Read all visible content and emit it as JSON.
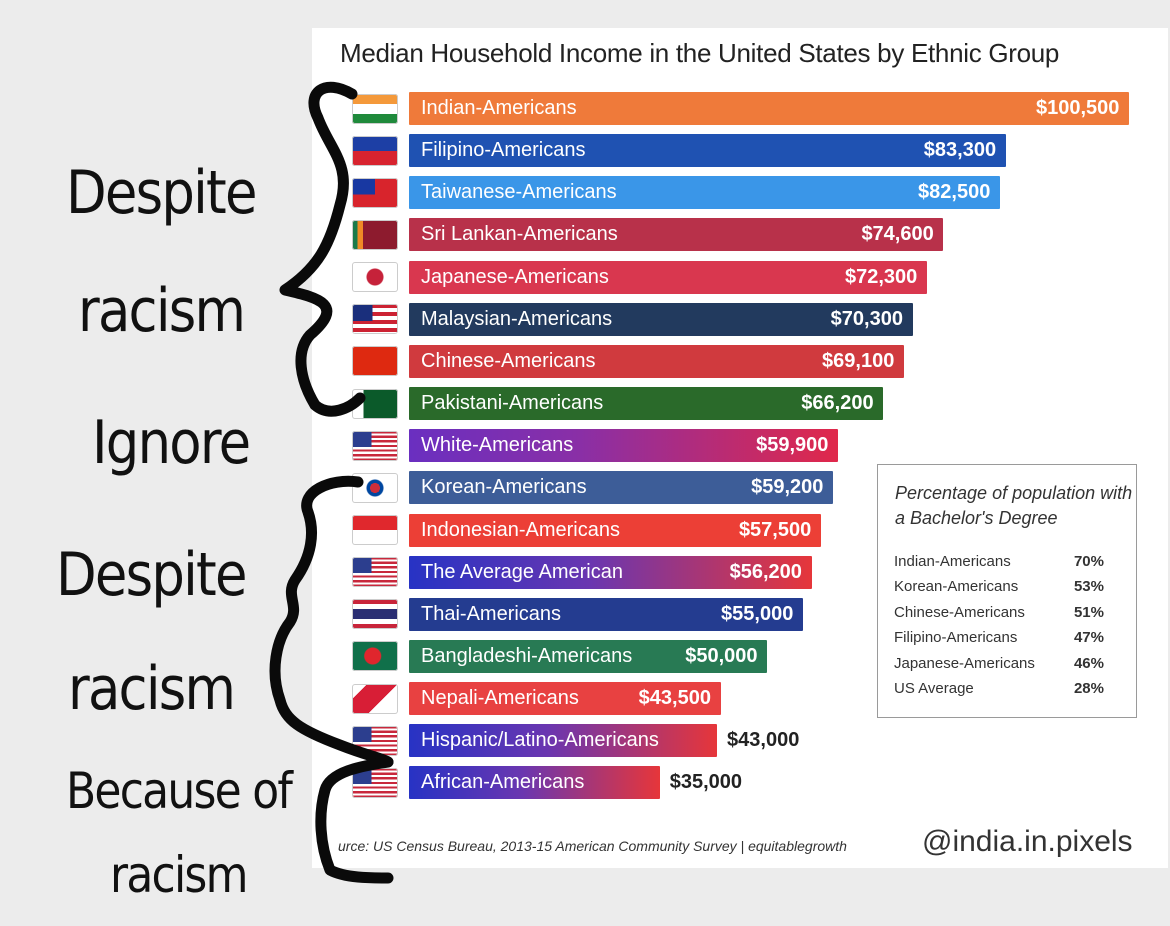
{
  "chart_data": {
    "type": "bar",
    "orientation": "horizontal",
    "title": "Median Household Income in the United States  by Ethnic Group",
    "categories": [
      "Indian-Americans",
      "Filipino-Americans",
      "Taiwanese-Americans",
      "Sri Lankan-Americans",
      "Japanese-Americans",
      "Malaysian-Americans",
      "Chinese-Americans",
      "Pakistani-Americans",
      "White-Americans",
      "Korean-Americans",
      "Indonesian-Americans",
      "The Average American",
      "Thai-Americans",
      "Bangladeshi-Americans",
      "Nepali-Americans",
      "Hispanic/Latino-Americans",
      "African-Americans"
    ],
    "values": [
      100500,
      83300,
      82500,
      74600,
      72300,
      70300,
      69100,
      66200,
      59900,
      59200,
      57500,
      56200,
      55000,
      50000,
      43500,
      43000,
      35000
    ],
    "value_labels": [
      "$100,500",
      "$83,300",
      "$82,500",
      "$74,600",
      "$72,300",
      "$70,300",
      "$69,100",
      "$66,200",
      "$59,900",
      "$59,200",
      "$57,500",
      "$56,200",
      "$55,000",
      "$50,000",
      "$43,500",
      "$43,000",
      "$35,000"
    ],
    "colors": [
      "#ef7a3a",
      "#1f52b2",
      "#3a96e8",
      "#b8314a",
      "#d9374f",
      "#223a5e",
      "#d03a3e",
      "#2a6a2a",
      "gradient-red-purple",
      "#3d5d98",
      "#ec3f36",
      "gradient-blue-red",
      "#243c90",
      "#287a54",
      "#e84141",
      "gradient-blue-red",
      "gradient-blue-red"
    ],
    "flags": [
      "india-flag-icon",
      "philippines-flag-icon",
      "taiwan-flag-icon",
      "sri-lanka-flag-icon",
      "japan-flag-icon",
      "malaysia-flag-icon",
      "china-flag-icon",
      "pakistan-flag-icon",
      "usa-flag-icon",
      "south-korea-flag-icon",
      "indonesia-flag-icon",
      "usa-flag-icon",
      "thailand-flag-icon",
      "bangladesh-flag-icon",
      "nepal-flag-icon",
      "usa-flag-icon",
      "usa-flag-icon"
    ],
    "xlim": [
      0,
      100500
    ],
    "grid": false,
    "legend_position": "right",
    "inset_table": {
      "title": "Percentage of population with a Bachelor's Degree",
      "rows": [
        {
          "label": "Indian-Americans",
          "value": "70%"
        },
        {
          "label": "Korean-Americans",
          "value": "53%"
        },
        {
          "label": "Chinese-Americans",
          "value": "51%"
        },
        {
          "label": "Filipino-Americans",
          "value": "47%"
        },
        {
          "label": "Japanese-Americans",
          "value": "46%"
        },
        {
          "label": "US Average",
          "value": "28%"
        }
      ]
    },
    "source": "urce: US Census Bureau, 2013-15 American Community Survey | equitablegrowth",
    "watermark": "@india.in.pixels"
  },
  "annotations": {
    "despite_1": "Despite",
    "racism_1": "racism",
    "ignore": "Ignore",
    "despite_2": "Despite",
    "racism_2": "racism",
    "because_of": "Because of",
    "racism_3": "racism"
  }
}
